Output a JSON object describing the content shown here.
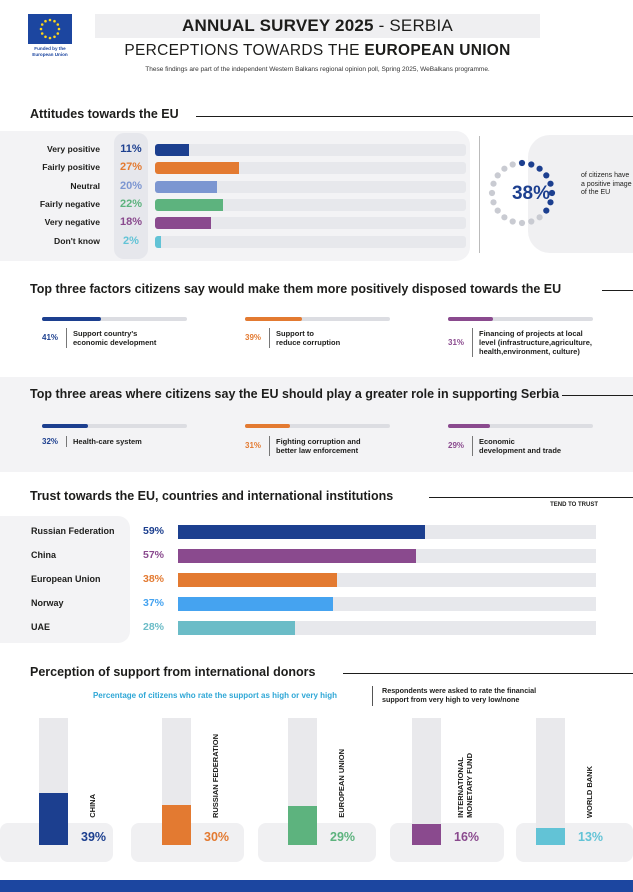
{
  "header": {
    "logo_caption": "Funded by the European Union",
    "title_bold": "ANNUAL SURVEY 2025",
    "title_rest": " - SERBIA",
    "subtitle_prefix": "PERCEPTIONS TOWARDS THE ",
    "subtitle_bold": "EUROPEAN UNION",
    "note": "These findings are part of the independent Western Balkans regional opinion poll, Spring 2025, WeBalkans programme."
  },
  "attitudes": {
    "title": "Attitudes towards the EU",
    "summary_pct": "38%",
    "summary_text": "of citizens have a positive image of the EU",
    "summary_value": 38,
    "rows": [
      {
        "label": "Very positive",
        "pct": "11%",
        "value": 11,
        "color": "#1c3f8f"
      },
      {
        "label": "Fairly positive",
        "pct": "27%",
        "value": 27,
        "color": "#e37a31"
      },
      {
        "label": "Neutral",
        "pct": "20%",
        "value": 20,
        "color": "#7c96d1"
      },
      {
        "label": "Fairly negative",
        "pct": "22%",
        "value": 22,
        "color": "#5db37e"
      },
      {
        "label": "Very negative",
        "pct": "18%",
        "value": 18,
        "color": "#8a4a8e"
      },
      {
        "label": "Don't know",
        "pct": "2%",
        "value": 2,
        "color": "#62c3d6"
      }
    ]
  },
  "factors": {
    "title": "Top three factors citizens say would make them more positively disposed towards the EU",
    "items": [
      {
        "pct": "41%",
        "value": 41,
        "text1": "Support country's",
        "text2": "economic development",
        "text3": "",
        "color": "#1c3f8f"
      },
      {
        "pct": "39%",
        "value": 39,
        "text1": "Support to",
        "text2": "reduce corruption",
        "text3": "",
        "color": "#e37a31"
      },
      {
        "pct": "31%",
        "value": 31,
        "text1": "Financing of projects at local",
        "text2": "level (infrastructure,agriculture,",
        "text3": "health,environment, culture)",
        "color": "#8a4a8e"
      }
    ]
  },
  "areas": {
    "title": "Top three areas where citizens say the EU should play a greater role in supporting Serbia",
    "items": [
      {
        "pct": "32%",
        "value": 32,
        "text1": "Health-care system",
        "text2": "",
        "color": "#1c3f8f"
      },
      {
        "pct": "31%",
        "value": 31,
        "text1": "Fighting corruption and",
        "text2": "better law enforcement",
        "color": "#e37a31"
      },
      {
        "pct": "29%",
        "value": 29,
        "text1": "Economic",
        "text2": "development and trade",
        "color": "#8a4a8e"
      }
    ]
  },
  "trust": {
    "title": "Trust towards the EU, countries and international institutions",
    "tend_label": "TEND TO TRUST",
    "rows": [
      {
        "label": "Russian Federation",
        "pct": "59%",
        "value": 59,
        "color": "#1c3f8f"
      },
      {
        "label": "China",
        "pct": "57%",
        "value": 57,
        "color": "#8a4a8e"
      },
      {
        "label": "European Union",
        "pct": "38%",
        "value": 38,
        "color": "#e37a31"
      },
      {
        "label": "Norway",
        "pct": "37%",
        "value": 37,
        "color": "#45a3f0"
      },
      {
        "label": "UAE",
        "pct": "28%",
        "value": 28,
        "color": "#6bbcc7"
      }
    ]
  },
  "donors": {
    "title": "Perception of support from international donors",
    "subtitle": "Percentage of citizens who rate the support as high or very high",
    "note1": "Respondents were asked to rate the financial",
    "note2": "support from very high to very low/none",
    "items": [
      {
        "name1": "CHINA",
        "name2": "",
        "pct": "39%",
        "value": 39,
        "color": "#1c3f8f"
      },
      {
        "name1": "RUSSIAN FEDERATION",
        "name2": "",
        "pct": "30%",
        "value": 30,
        "color": "#e37a31"
      },
      {
        "name1": "EUROPEAN UNION",
        "name2": "",
        "pct": "29%",
        "value": 29,
        "color": "#5db37e"
      },
      {
        "name1": "INTERNATIONAL",
        "name2": "MONETARY FUND",
        "pct": "16%",
        "value": 16,
        "color": "#8a4a8e"
      },
      {
        "name1": "WORLD BANK",
        "name2": "",
        "pct": "13%",
        "value": 13,
        "color": "#62c3d6"
      }
    ]
  },
  "chart_data": [
    {
      "type": "bar",
      "title": "Attitudes towards the EU",
      "categories": [
        "Very positive",
        "Fairly positive",
        "Neutral",
        "Fairly negative",
        "Very negative",
        "Don't know"
      ],
      "values": [
        11,
        27,
        20,
        22,
        18,
        2
      ],
      "ylim": [
        0,
        100
      ]
    },
    {
      "type": "bar",
      "title": "Top three factors citizens say would make them more positively disposed towards the EU",
      "categories": [
        "Support country's economic development",
        "Support to reduce corruption",
        "Financing of projects at local level (infrastructure,agriculture, health,environment, culture)"
      ],
      "values": [
        41,
        39,
        31
      ],
      "ylim": [
        0,
        100
      ]
    },
    {
      "type": "bar",
      "title": "Top three areas where citizens say the EU should play a greater role in supporting Serbia",
      "categories": [
        "Health-care system",
        "Fighting corruption and better law enforcement",
        "Economic development and trade"
      ],
      "values": [
        32,
        31,
        29
      ],
      "ylim": [
        0,
        100
      ]
    },
    {
      "type": "bar",
      "title": "Trust towards the EU, countries and international institutions",
      "categories": [
        "Russian Federation",
        "China",
        "European Union",
        "Norway",
        "UAE"
      ],
      "values": [
        59,
        57,
        38,
        37,
        28
      ],
      "ylabel": "TEND TO TRUST",
      "ylim": [
        0,
        100
      ]
    },
    {
      "type": "bar",
      "title": "Perception of support from international donors",
      "categories": [
        "China",
        "Russian Federation",
        "European Union",
        "International Monetary Fund",
        "World Bank"
      ],
      "values": [
        39,
        30,
        29,
        16,
        13
      ],
      "ylim": [
        0,
        100
      ]
    }
  ]
}
